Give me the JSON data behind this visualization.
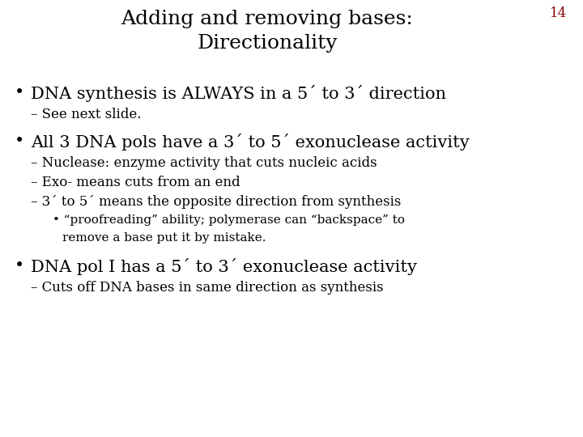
{
  "title_line1": "Adding and removing bases:",
  "title_line2": "Directionality",
  "slide_number": "14",
  "slide_number_color": "#8b0000",
  "background_color": "#ffffff",
  "text_color": "#000000",
  "title_fontsize": 18,
  "slide_num_fontsize": 12,
  "bullet_fontsize": 15,
  "sub_fontsize": 12,
  "subsub_fontsize": 11,
  "font_family": "DejaVu Serif",
  "bullet1_text": "DNA synthesis is ALWAYS in a 5´ to 3´ direction",
  "bullet1_sub": "– See next slide.",
  "bullet2_text": "All 3 DNA pols have a 3´ to 5´ exonuclease activity",
  "bullet2_sub1": "– Nuclease: enzyme activity that cuts nucleic acids",
  "bullet2_sub2": "– Exo- means cuts from an end",
  "bullet2_sub3": "– 3´ to 5´ means the opposite direction from synthesis",
  "bullet2_sub4a": "• “proofreading” ability; polymerase can “backspace” to",
  "bullet2_sub4b": "   remove a base put it by mistake.",
  "bullet3_text": "DNA pol I has a 5´ to 3´ exonuclease activity",
  "bullet3_sub": "– Cuts off DNA bases in same direction as synthesis"
}
